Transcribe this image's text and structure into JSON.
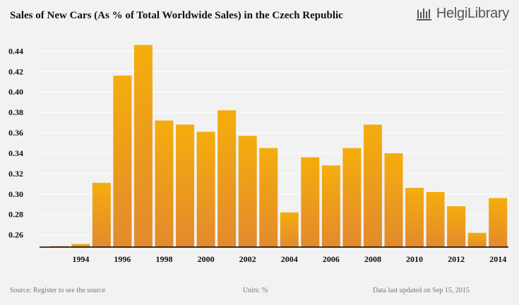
{
  "chart_data": {
    "type": "bar",
    "title": "Sales of New Cars (As % of Total Worldwide Sales) in the Czech Republic",
    "xlabel": "",
    "ylabel": "",
    "categories": [
      "1993",
      "1994",
      "1995",
      "1996",
      "1997",
      "1998",
      "1999",
      "2000",
      "2001",
      "2002",
      "2003",
      "2004",
      "2005",
      "2006",
      "2007",
      "2008",
      "2009",
      "2010",
      "2011",
      "2012",
      "2013",
      "2014"
    ],
    "x_tick_labels": [
      "1994",
      "1996",
      "1998",
      "2000",
      "2002",
      "2004",
      "2006",
      "2008",
      "2010",
      "2012",
      "2014"
    ],
    "values": [
      0.249,
      0.251,
      0.311,
      0.416,
      0.446,
      0.372,
      0.368,
      0.361,
      0.382,
      0.357,
      0.345,
      0.282,
      0.336,
      0.328,
      0.345,
      0.368,
      0.34,
      0.306,
      0.302,
      0.288,
      0.262,
      0.296
    ],
    "ylim": [
      0.248,
      0.452
    ],
    "y_ticks": [
      "0.26",
      "0.28",
      "0.30",
      "0.32",
      "0.34",
      "0.36",
      "0.38",
      "0.40",
      "0.42",
      "0.44"
    ],
    "grid": true,
    "colors": {
      "bar_top": "#f5ad0c",
      "bar_bottom": "#e28a2e",
      "grid": "#ffffff",
      "axis": "#000000"
    }
  },
  "logo": {
    "text": "HelgiLibrary"
  },
  "footer": {
    "source": "Source: Register to see the source",
    "units": "Units: %",
    "updated": "Data last updated on Sep 15, 2015"
  }
}
